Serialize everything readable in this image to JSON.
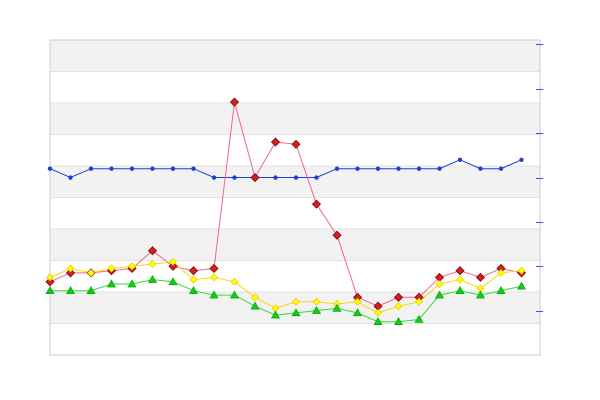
{
  "chart_data": {
    "type": "line",
    "title": "",
    "xlabel": "",
    "ylabel": "",
    "grid": true,
    "legend": "none",
    "ylim": [
      0,
      7.1
    ],
    "y_ticks": [
      1,
      2,
      3,
      4,
      5,
      6,
      7
    ],
    "x": [
      0,
      1,
      2,
      3,
      4,
      5,
      6,
      7,
      8,
      9,
      10,
      11,
      12,
      13,
      14,
      15,
      16,
      17,
      18,
      19,
      20,
      21,
      22,
      23
    ],
    "series": [
      {
        "marker": "circle",
        "color": "#1f3fd6",
        "values": [
          4.2,
          4.0,
          4.2,
          4.2,
          4.2,
          4.2,
          4.2,
          4.2,
          4.0,
          4.0,
          4.0,
          4.0,
          4.0,
          4.0,
          4.2,
          4.2,
          4.2,
          4.2,
          4.2,
          4.2,
          4.4,
          4.2,
          4.2,
          4.4
        ]
      },
      {
        "marker": "diamond",
        "color": "#cc2222",
        "line_color": "#ee6699",
        "values": [
          1.65,
          1.85,
          1.85,
          1.9,
          1.95,
          2.35,
          2.0,
          1.9,
          1.95,
          5.7,
          4.0,
          4.8,
          4.75,
          3.4,
          2.7,
          1.3,
          1.1,
          1.3,
          1.3,
          1.75,
          1.9,
          1.75,
          1.95,
          1.85
        ]
      },
      {
        "marker": "square",
        "color": "#ffff00",
        "line_color": "#ffd700",
        "values": [
          1.75,
          1.95,
          1.85,
          1.95,
          2.0,
          2.05,
          2.1,
          1.7,
          1.75,
          1.65,
          1.3,
          1.05,
          1.2,
          1.2,
          1.15,
          1.2,
          0.95,
          1.1,
          1.2,
          1.6,
          1.7,
          1.5,
          1.85,
          1.9
        ]
      },
      {
        "marker": "triangle",
        "color": "#11cc11",
        "line_color": "#33dd33",
        "values": [
          1.45,
          1.45,
          1.45,
          1.6,
          1.6,
          1.7,
          1.65,
          1.45,
          1.35,
          1.35,
          1.1,
          0.9,
          0.95,
          1.0,
          1.05,
          0.95,
          0.75,
          0.75,
          0.8,
          1.35,
          1.45,
          1.35,
          1.45,
          1.55
        ]
      }
    ]
  }
}
